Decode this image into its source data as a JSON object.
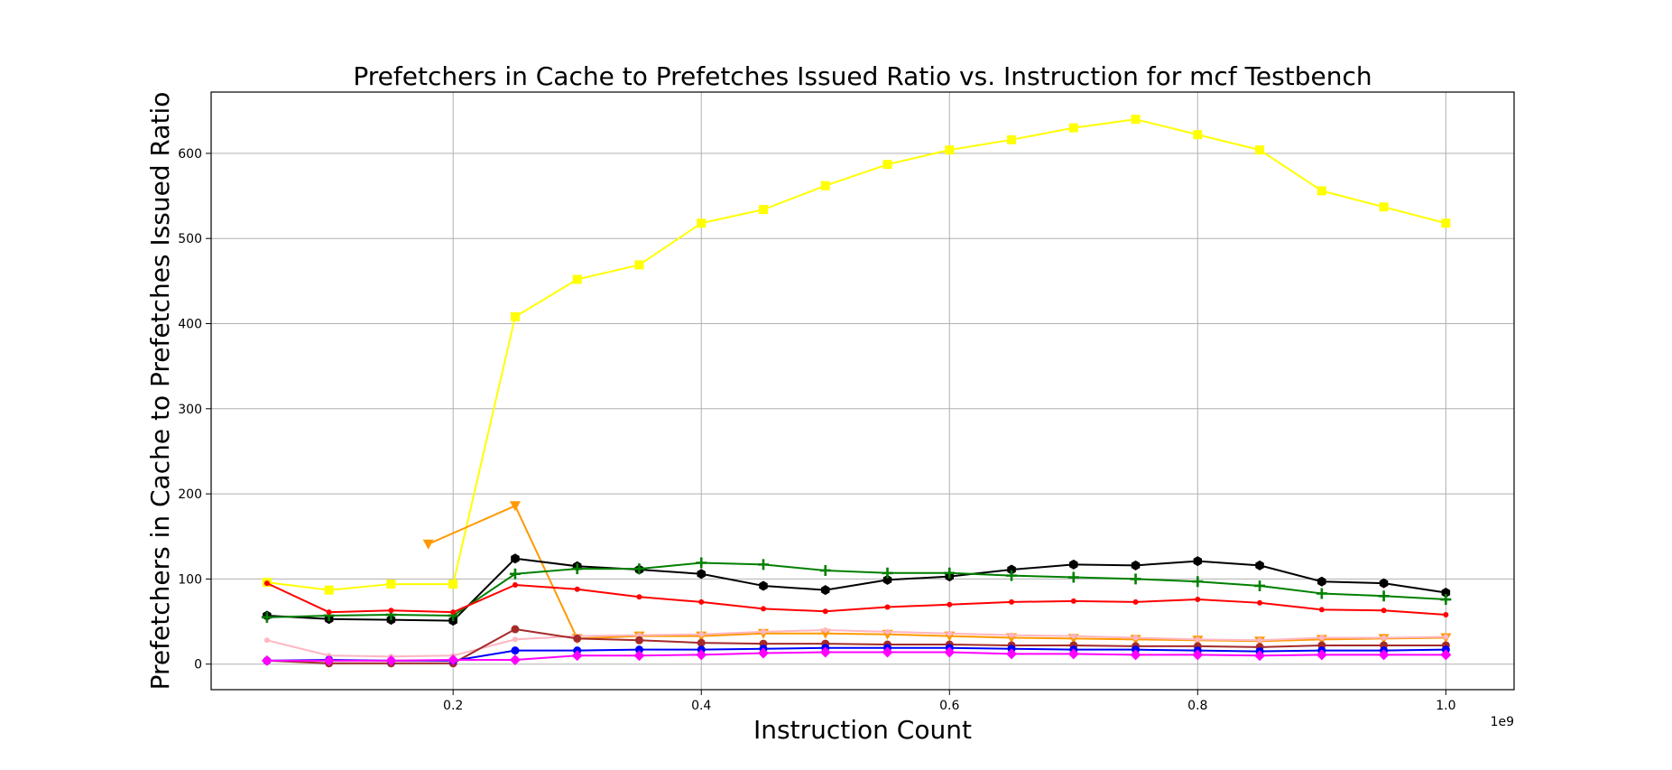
{
  "chart_data": {
    "type": "line",
    "title": "Prefetchers in Cache to Prefetches Issued Ratio vs. Instruction for mcf Testbench",
    "xlabel": "Instruction Count",
    "ylabel": "Prefetchers in Cache to Prefetches Issued Ratio",
    "x_offset_label": "1e9",
    "xlim": [
      0.005,
      1.055
    ],
    "ylim": [
      -30,
      672
    ],
    "x_ticks": [
      0.2,
      0.4,
      0.6,
      0.8,
      1.0
    ],
    "x_tick_labels": [
      "0.2",
      "0.4",
      "0.6",
      "0.8",
      "1.0"
    ],
    "y_ticks": [
      0,
      100,
      200,
      300,
      400,
      500,
      600
    ],
    "y_tick_labels": [
      "0",
      "100",
      "200",
      "300",
      "400",
      "500",
      "600"
    ],
    "grid": true,
    "x": [
      0.05,
      0.1,
      0.15,
      0.2,
      0.25,
      0.3,
      0.35,
      0.4,
      0.45,
      0.5,
      0.55,
      0.6,
      0.65,
      0.7,
      0.75,
      0.8,
      0.85,
      0.9,
      0.95,
      1.0
    ],
    "series": [
      {
        "color": "#ffff00",
        "marker": "square",
        "values": [
          96,
          87,
          94,
          94,
          408,
          452,
          469,
          518,
          534,
          562,
          587,
          604,
          616,
          630,
          640,
          622,
          604,
          556,
          537,
          518
        ]
      },
      {
        "color": "#ff9900",
        "marker": "triangle-down",
        "values": [
          null,
          null,
          null,
          141,
          186,
          30,
          33,
          33,
          36,
          36,
          35,
          33,
          31,
          30,
          29,
          28,
          27,
          29,
          30,
          31
        ],
        "x_override": [
          null,
          null,
          null,
          0.18,
          0.25,
          0.3,
          0.35,
          0.4,
          0.45,
          0.5,
          0.55,
          0.6,
          0.65,
          0.7,
          0.75,
          0.8,
          0.85,
          0.9,
          0.95,
          1.0
        ]
      },
      {
        "color": "#000000",
        "marker": "hexagon",
        "values": [
          57,
          53,
          52,
          51,
          124,
          115,
          111,
          106,
          92,
          87,
          99,
          103,
          111,
          117,
          116,
          121,
          116,
          97,
          95,
          84
        ]
      },
      {
        "color": "#008000",
        "marker": "plus",
        "values": [
          55,
          57,
          58,
          57,
          106,
          112,
          112,
          119,
          117,
          110,
          107,
          107,
          104,
          102,
          100,
          97,
          92,
          83,
          80,
          76
        ]
      },
      {
        "color": "#ff0000",
        "marker": "dot",
        "values": [
          95,
          61,
          63,
          61,
          93,
          88,
          79,
          73,
          65,
          62,
          67,
          70,
          73,
          74,
          73,
          76,
          72,
          64,
          63,
          58
        ]
      },
      {
        "color": "#ffb6c1",
        "marker": "dot",
        "values": [
          28,
          10,
          9,
          10,
          29,
          33,
          34,
          35,
          38,
          40,
          38,
          36,
          34,
          33,
          31,
          29,
          28,
          31,
          31,
          32
        ]
      },
      {
        "color": "#a52a2a",
        "marker": "circle",
        "values": [
          4,
          1,
          1,
          1,
          41,
          30,
          28,
          25,
          24,
          24,
          23,
          23,
          22,
          22,
          21,
          21,
          20,
          22,
          22,
          22
        ]
      },
      {
        "color": "#0000ff",
        "marker": "circle",
        "values": [
          4,
          5,
          4,
          4,
          16,
          16,
          17,
          17,
          18,
          19,
          19,
          19,
          18,
          17,
          17,
          16,
          15,
          16,
          16,
          17
        ]
      },
      {
        "color": "#ff00ff",
        "marker": "diamond",
        "values": [
          4,
          4,
          4,
          5,
          5,
          10,
          10,
          11,
          13,
          14,
          14,
          14,
          12,
          12,
          11,
          11,
          10,
          11,
          11,
          11
        ]
      }
    ]
  }
}
